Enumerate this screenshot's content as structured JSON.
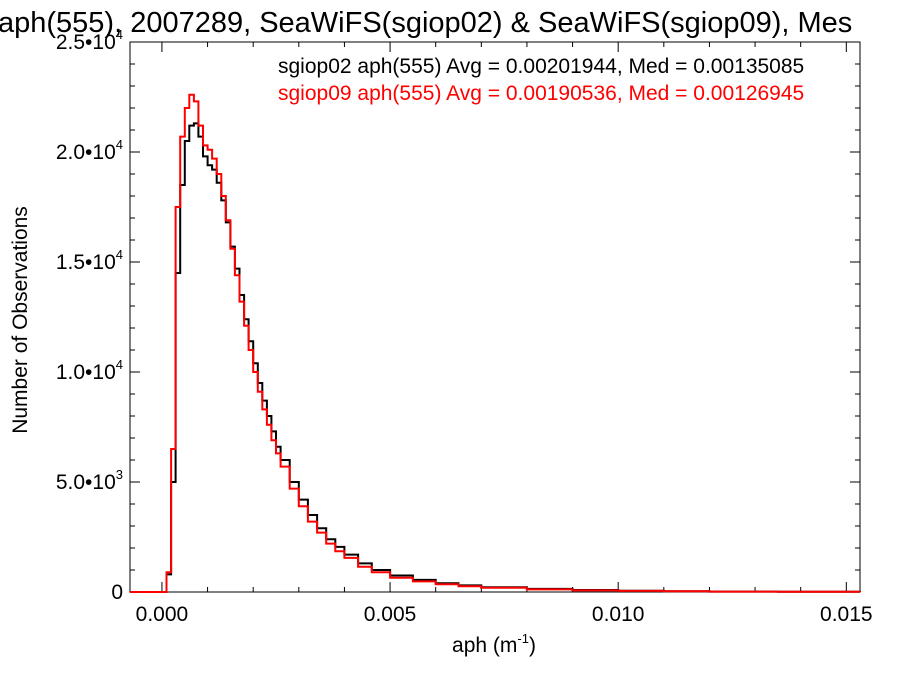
{
  "chart_data": {
    "type": "line",
    "title": "aph(555), 2007289, SeaWiFS(sgiop02) & SeaWiFS(sgiop09), Mes",
    "xlabel": "aph (m",
    "xlabel_sup": "-1",
    "xlabel_tail": ")",
    "ylabel": "Number of Observations",
    "xlim": [
      -0.0007,
      0.0153
    ],
    "ylim": [
      0,
      25000
    ],
    "grid": false,
    "x_ticks": [
      {
        "value": 0.0,
        "label": "0.000"
      },
      {
        "value": 0.005,
        "label": "0.005"
      },
      {
        "value": 0.01,
        "label": "0.010"
      },
      {
        "value": 0.015,
        "label": "0.015"
      }
    ],
    "y_ticks": [
      {
        "value": 0,
        "label": "0",
        "sup": ""
      },
      {
        "value": 5000,
        "label": "5.0•10",
        "sup": "3"
      },
      {
        "value": 10000,
        "label": "1.0•10",
        "sup": "4"
      },
      {
        "value": 15000,
        "label": "1.5•10",
        "sup": "4"
      },
      {
        "value": 20000,
        "label": "2.0•10",
        "sup": "4"
      },
      {
        "value": 25000,
        "label": "2.5•10",
        "sup": "4"
      }
    ],
    "annotations": [
      "sgiop02 aph(555) Avg = 0.00201944, Med = 0.00135085",
      "sgiop09 aph(555) Avg = 0.00190536, Med = 0.00126945"
    ],
    "colors": {
      "sgiop02": "#000000",
      "sgiop09": "#ff0000"
    },
    "series": [
      {
        "color": "#000000",
        "points": [
          [
            -0.0007,
            0
          ],
          [
            0.0,
            0
          ],
          [
            0.0001,
            800
          ],
          [
            0.0002,
            5000
          ],
          [
            0.0003,
            14500
          ],
          [
            0.0004,
            18500
          ],
          [
            0.0005,
            20500
          ],
          [
            0.0006,
            21200
          ],
          [
            0.0007,
            21300
          ],
          [
            0.0008,
            20700
          ],
          [
            0.0009,
            19800
          ],
          [
            0.001,
            19400
          ],
          [
            0.0011,
            19200
          ],
          [
            0.0012,
            18600
          ],
          [
            0.0013,
            17800
          ],
          [
            0.0014,
            16800
          ],
          [
            0.0015,
            15700
          ],
          [
            0.0016,
            14700
          ],
          [
            0.0017,
            13500
          ],
          [
            0.0018,
            12400
          ],
          [
            0.0019,
            11400
          ],
          [
            0.002,
            10400
          ],
          [
            0.0021,
            9500
          ],
          [
            0.0022,
            8700
          ],
          [
            0.0023,
            8000
          ],
          [
            0.0024,
            7300
          ],
          [
            0.0025,
            6600
          ],
          [
            0.0026,
            6000
          ],
          [
            0.0028,
            5000
          ],
          [
            0.003,
            4200
          ],
          [
            0.0032,
            3500
          ],
          [
            0.0034,
            2900
          ],
          [
            0.0036,
            2400
          ],
          [
            0.0038,
            2050
          ],
          [
            0.004,
            1700
          ],
          [
            0.0043,
            1300
          ],
          [
            0.0046,
            1000
          ],
          [
            0.005,
            750
          ],
          [
            0.0055,
            550
          ],
          [
            0.006,
            400
          ],
          [
            0.0065,
            300
          ],
          [
            0.007,
            220
          ],
          [
            0.008,
            140
          ],
          [
            0.009,
            90
          ],
          [
            0.01,
            60
          ],
          [
            0.011,
            35
          ],
          [
            0.012,
            20
          ],
          [
            0.0135,
            10
          ],
          [
            0.0153,
            0
          ]
        ]
      },
      {
        "color": "#ff0000",
        "points": [
          [
            -0.0007,
            0
          ],
          [
            0.0,
            0
          ],
          [
            0.0001,
            900
          ],
          [
            0.0002,
            6500
          ],
          [
            0.0003,
            17500
          ],
          [
            0.0004,
            20700
          ],
          [
            0.0005,
            22000
          ],
          [
            0.0006,
            22600
          ],
          [
            0.0007,
            22300
          ],
          [
            0.0008,
            21200
          ],
          [
            0.0009,
            20300
          ],
          [
            0.001,
            20100
          ],
          [
            0.0011,
            19700
          ],
          [
            0.0012,
            19000
          ],
          [
            0.0013,
            18000
          ],
          [
            0.0014,
            16900
          ],
          [
            0.0015,
            15600
          ],
          [
            0.0016,
            14400
          ],
          [
            0.0017,
            13200
          ],
          [
            0.0018,
            12100
          ],
          [
            0.0019,
            11000
          ],
          [
            0.002,
            10000
          ],
          [
            0.0021,
            9100
          ],
          [
            0.0022,
            8300
          ],
          [
            0.0023,
            7600
          ],
          [
            0.0024,
            6900
          ],
          [
            0.0025,
            6300
          ],
          [
            0.0026,
            5700
          ],
          [
            0.0028,
            4700
          ],
          [
            0.003,
            3900
          ],
          [
            0.0032,
            3200
          ],
          [
            0.0034,
            2700
          ],
          [
            0.0036,
            2200
          ],
          [
            0.0038,
            1850
          ],
          [
            0.004,
            1550
          ],
          [
            0.0043,
            1150
          ],
          [
            0.0046,
            900
          ],
          [
            0.005,
            650
          ],
          [
            0.0055,
            480
          ],
          [
            0.006,
            350
          ],
          [
            0.0065,
            260
          ],
          [
            0.007,
            190
          ],
          [
            0.008,
            120
          ],
          [
            0.009,
            75
          ],
          [
            0.01,
            50
          ],
          [
            0.011,
            30
          ],
          [
            0.012,
            18
          ],
          [
            0.0135,
            8
          ],
          [
            0.0153,
            0
          ]
        ]
      }
    ]
  }
}
